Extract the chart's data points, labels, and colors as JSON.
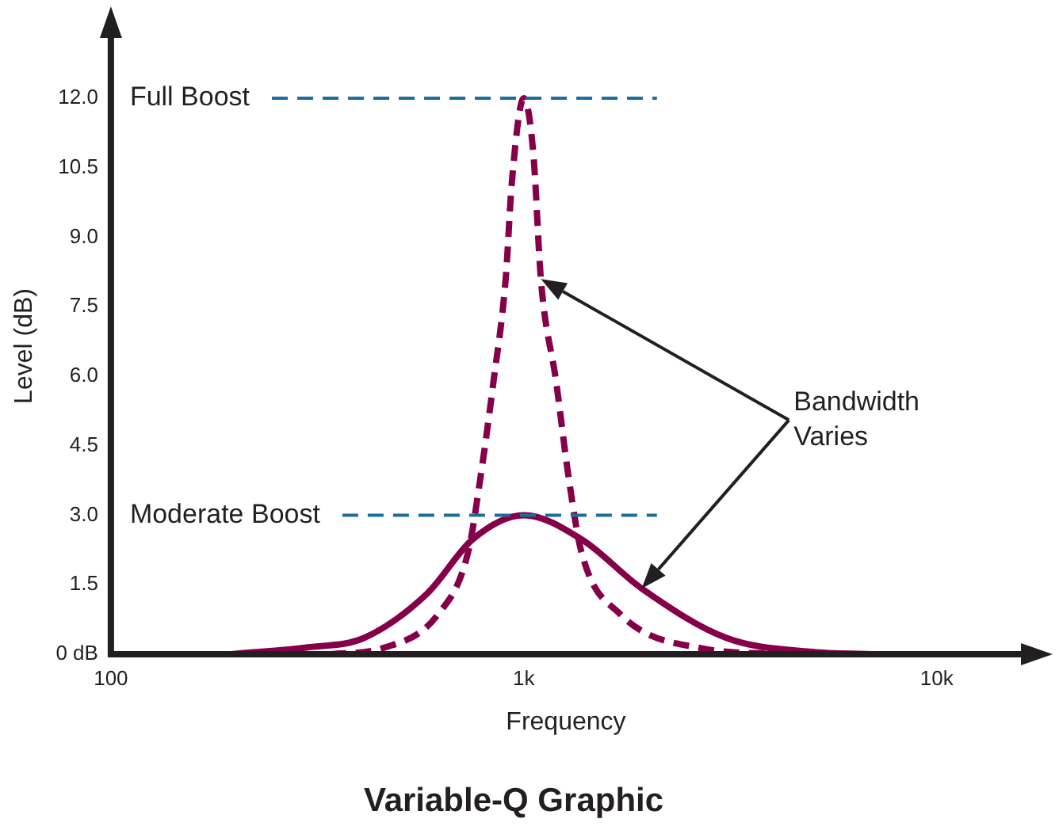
{
  "chart_data": {
    "type": "line",
    "title": "Variable-Q Graphic",
    "xlabel": "Frequency",
    "ylabel": "Level (dB)",
    "log": "x",
    "xlim": [
      100,
      16000
    ],
    "xticks": [
      100,
      {
        "value": 1000,
        "label": "1k"
      },
      {
        "value": 10000,
        "label": "10k"
      }
    ],
    "ylim": [
      0,
      13.3
    ],
    "yticks": [
      {
        "value": 0,
        "label": "0 dB"
      },
      1.5,
      {
        "value": 3,
        "label": "3.0"
      },
      4.5,
      {
        "value": 6,
        "label": "6.0"
      },
      7.5,
      {
        "value": 9,
        "label": "9.0"
      },
      10.5,
      {
        "value": 12,
        "label": "12.0"
      }
    ],
    "grid": false,
    "legend": false,
    "marker": "none",
    "series": [
      {
        "color": "#850049",
        "line_style": "solid",
        "x": [
          195,
          300,
          410,
          585,
          752,
          1000,
          1380,
          1930,
          3100,
          5000,
          6900
        ],
        "values": [
          0,
          0.15,
          0.35,
          1.32,
          2.48,
          3.0,
          2.48,
          1.42,
          0.35,
          0.05,
          0
        ]
      },
      {
        "color": "#850049",
        "line_style": "dashed",
        "x": [
          340,
          455,
          621,
          733,
          785,
          845,
          904,
          936,
          1000,
          1055,
          1100,
          1197,
          1285,
          1380,
          1710,
          2690,
          4340
        ],
        "values": [
          0,
          0.13,
          0.87,
          2.2,
          3.8,
          5.9,
          8.1,
          10.2,
          12.0,
          10.8,
          8.1,
          5.9,
          3.8,
          2.2,
          0.87,
          0.13,
          0
        ]
      }
    ],
    "ref_lines": [
      {
        "axis": "y",
        "value": 12,
        "label": "Full Boost",
        "color": "#1a6e99",
        "line_style": "dashed"
      },
      {
        "axis": "y",
        "value": 3,
        "label": "Moderate Boost",
        "color": "#1a6e99",
        "line_style": "dashed"
      }
    ],
    "annotations": [
      "Bandwidth Varies"
    ]
  }
}
